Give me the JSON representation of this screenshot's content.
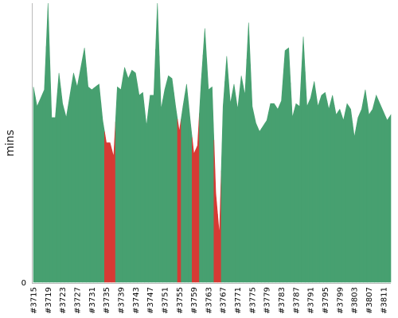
{
  "chart_data": {
    "type": "area",
    "title": "",
    "xlabel": "",
    "ylabel": "mins",
    "ylim": [
      0,
      100
    ],
    "yticks": [
      0
    ],
    "colors": {
      "pass": "#47a070",
      "fail": "#d63a34",
      "axis": "#bbbbbb"
    },
    "x": [
      3715,
      3716,
      3717,
      3718,
      3719,
      3720,
      3721,
      3722,
      3723,
      3724,
      3725,
      3726,
      3727,
      3728,
      3729,
      3730,
      3731,
      3732,
      3733,
      3734,
      3735,
      3736,
      3737,
      3738,
      3739,
      3740,
      3741,
      3742,
      3743,
      3744,
      3745,
      3746,
      3747,
      3748,
      3749,
      3750,
      3751,
      3752,
      3753,
      3754,
      3755,
      3756,
      3757,
      3758,
      3759,
      3760,
      3761,
      3762,
      3763,
      3764,
      3765,
      3766,
      3767,
      3768,
      3769,
      3770,
      3771,
      3772,
      3773,
      3774,
      3775,
      3776,
      3777,
      3778,
      3779,
      3780,
      3781,
      3782,
      3783,
      3784,
      3785,
      3786,
      3787,
      3788,
      3789,
      3790,
      3791,
      3792,
      3793,
      3794,
      3795,
      3796,
      3797,
      3798,
      3799,
      3800,
      3801,
      3802,
      3803,
      3804,
      3805,
      3806,
      3807,
      3808,
      3809,
      3810,
      3811,
      3812,
      3813
    ],
    "x_tick_labels": [
      "#3715",
      "#3719",
      "#3723",
      "#3727",
      "#3731",
      "#3735",
      "#3739",
      "#3743",
      "#3747",
      "#3751",
      "#3755",
      "#3759",
      "#3763",
      "#3767",
      "#3771",
      "#3775",
      "#3779",
      "#3783",
      "#3787",
      "#3791",
      "#3795",
      "#3799",
      "#3803",
      "#3807",
      "#3811"
    ],
    "series": [
      {
        "values": [
          70,
          63,
          66,
          69,
          100,
          59,
          59,
          75,
          64,
          59,
          67,
          75,
          70,
          77,
          84,
          70,
          69,
          70,
          71,
          58,
          50,
          50,
          45,
          70,
          69,
          77,
          73,
          76,
          75,
          67,
          68,
          56,
          67,
          67,
          100,
          62,
          69,
          74,
          73,
          63,
          54,
          63,
          71,
          58,
          46,
          49,
          72,
          91,
          69,
          70,
          32,
          17,
          63,
          81,
          64,
          71,
          62,
          74,
          67,
          93,
          63,
          57,
          54,
          56,
          58,
          64,
          64,
          62,
          65,
          83,
          84,
          59,
          64,
          63,
          88,
          63,
          66,
          72,
          63,
          67,
          68,
          62,
          67,
          60,
          62,
          58,
          64,
          62,
          52,
          59,
          62,
          69,
          60,
          62,
          67,
          64,
          61,
          58,
          60
        ],
        "status": [
          "pass",
          "pass",
          "pass",
          "pass",
          "pass",
          "pass",
          "pass",
          "pass",
          "pass",
          "pass",
          "pass",
          "pass",
          "pass",
          "pass",
          "pass",
          "pass",
          "pass",
          "pass",
          "pass",
          "pass",
          "fail",
          "fail",
          "fail",
          "pass",
          "pass",
          "pass",
          "pass",
          "pass",
          "pass",
          "pass",
          "pass",
          "pass",
          "pass",
          "pass",
          "pass",
          "pass",
          "pass",
          "pass",
          "pass",
          "pass",
          "fail",
          "pass",
          "pass",
          "pass",
          "fail",
          "fail",
          "pass",
          "pass",
          "pass",
          "pass",
          "fail",
          "fail",
          "pass",
          "pass",
          "pass",
          "pass",
          "pass",
          "pass",
          "pass",
          "pass",
          "pass",
          "pass",
          "pass",
          "pass",
          "pass",
          "pass",
          "pass",
          "pass",
          "pass",
          "pass",
          "pass",
          "pass",
          "pass",
          "pass",
          "pass",
          "pass",
          "pass",
          "pass",
          "pass",
          "pass",
          "pass",
          "pass",
          "pass",
          "pass",
          "pass",
          "pass",
          "pass",
          "pass",
          "pass",
          "pass",
          "pass",
          "pass",
          "pass",
          "pass",
          "pass",
          "pass",
          "pass",
          "pass",
          "pass"
        ]
      }
    ],
    "grid": false,
    "legend": "none"
  }
}
